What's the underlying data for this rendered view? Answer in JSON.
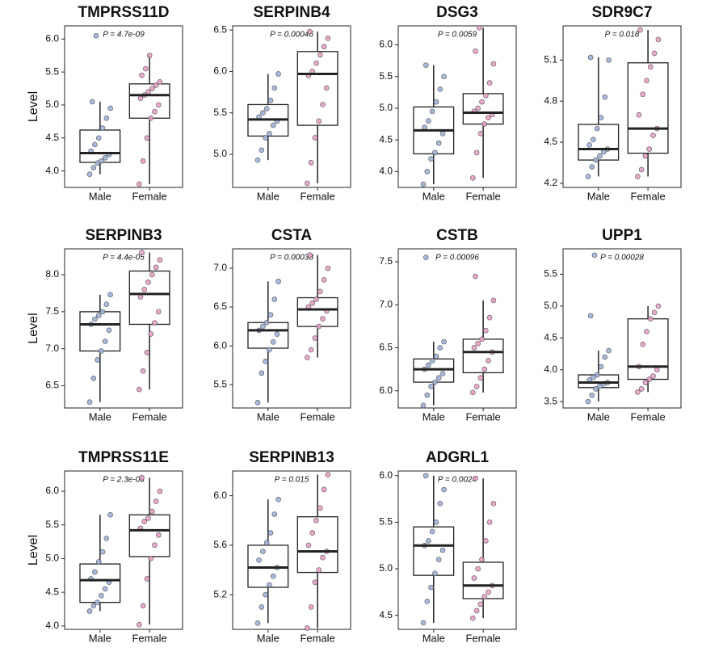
{
  "chart_data": [
    {
      "type": "box",
      "title": "TMPRSS11D",
      "annotation": "P = 4.7e-09",
      "ylabel": "Level",
      "categories": [
        "Male",
        "Female"
      ],
      "colors": [
        "#9fb1d8",
        "#e7a0c6"
      ],
      "ylim": [
        3.75,
        6.2
      ],
      "yticks": [
        {
          "value": 4,
          "label": "4.0"
        },
        4.5,
        {
          "value": 5,
          "label": "5.0"
        },
        5.5,
        {
          "value": 6,
          "label": "6.0"
        }
      ],
      "boxes": [
        {
          "min": 3.95,
          "q1": 4.13,
          "median": 4.27,
          "q3": 4.62,
          "max": 5.05
        },
        {
          "min": 3.8,
          "q1": 4.8,
          "median": 5.15,
          "q3": 5.32,
          "max": 5.75
        }
      ],
      "points": [
        [
          3.95,
          4.05,
          4.12,
          4.15,
          4.2,
          4.25,
          4.3,
          4.4,
          4.5,
          4.65,
          4.8,
          4.95,
          5.05,
          6.05
        ],
        [
          3.8,
          4.15,
          4.5,
          4.8,
          4.9,
          5.0,
          5.1,
          5.15,
          5.2,
          5.25,
          5.3,
          5.35,
          5.45,
          5.55,
          5.75
        ]
      ]
    },
    {
      "type": "box",
      "title": "SERPINB4",
      "annotation": "P = 0.00046",
      "categories": [
        "Male",
        "Female"
      ],
      "colors": [
        "#9fb1d8",
        "#e7a0c6"
      ],
      "ylim": [
        4.6,
        6.55
      ],
      "yticks": [
        {
          "value": 5,
          "label": "5.0"
        },
        5.5,
        {
          "value": 6,
          "label": "6.0"
        },
        6.5
      ],
      "boxes": [
        {
          "min": 4.93,
          "q1": 5.22,
          "median": 5.42,
          "q3": 5.6,
          "max": 5.97
        },
        {
          "min": 4.65,
          "q1": 5.35,
          "median": 5.97,
          "q3": 6.24,
          "max": 6.48
        }
      ],
      "points": [
        [
          4.93,
          5.05,
          5.2,
          5.25,
          5.35,
          5.4,
          5.45,
          5.5,
          5.55,
          5.65,
          5.8,
          5.97
        ],
        [
          4.65,
          4.9,
          5.2,
          5.4,
          5.6,
          5.8,
          5.95,
          6.0,
          6.1,
          6.2,
          6.3,
          6.4,
          6.48
        ]
      ]
    },
    {
      "type": "box",
      "title": "DSG3",
      "annotation": "P = 0.0059",
      "categories": [
        "Male",
        "Female"
      ],
      "colors": [
        "#9fb1d8",
        "#e7a0c6"
      ],
      "ylim": [
        3.75,
        6.3
      ],
      "yticks": [
        {
          "value": 4,
          "label": "4.0"
        },
        4.5,
        {
          "value": 5,
          "label": "5.0"
        },
        5.5,
        {
          "value": 6,
          "label": "6.0"
        }
      ],
      "boxes": [
        {
          "min": 3.8,
          "q1": 4.28,
          "median": 4.65,
          "q3": 5.02,
          "max": 5.68
        },
        {
          "min": 3.9,
          "q1": 4.75,
          "median": 4.93,
          "q3": 5.23,
          "max": 6.27
        }
      ],
      "points": [
        [
          3.8,
          4.0,
          4.2,
          4.3,
          4.45,
          4.6,
          4.7,
          4.8,
          4.95,
          5.1,
          5.3,
          5.5,
          5.68
        ],
        [
          3.9,
          4.3,
          4.6,
          4.75,
          4.85,
          4.9,
          4.95,
          5.0,
          5.1,
          5.2,
          5.4,
          5.7,
          5.9,
          6.27
        ]
      ]
    },
    {
      "type": "box",
      "title": "SDR9C7",
      "annotation": "P = 0.018",
      "categories": [
        "Male",
        "Female"
      ],
      "colors": [
        "#9fb1d8",
        "#e7a0c6"
      ],
      "ylim": [
        4.17,
        5.35
      ],
      "yticks": [
        4.2,
        4.5,
        4.8,
        5.1
      ],
      "boxes": [
        {
          "min": 4.25,
          "q1": 4.37,
          "median": 4.45,
          "q3": 4.63,
          "max": 5.12
        },
        {
          "min": 4.25,
          "q1": 4.42,
          "median": 4.6,
          "q3": 5.08,
          "max": 5.32
        }
      ],
      "points": [
        [
          4.25,
          4.32,
          4.37,
          4.4,
          4.43,
          4.45,
          4.48,
          4.52,
          4.6,
          4.68,
          4.83,
          5.1,
          5.12
        ],
        [
          4.25,
          4.3,
          4.4,
          4.45,
          4.55,
          4.6,
          4.7,
          4.85,
          4.95,
          5.05,
          5.15,
          5.25,
          5.32
        ]
      ]
    },
    {
      "type": "box",
      "title": "SERPINB3",
      "annotation": "P = 4.4e-05",
      "ylabel": "Level",
      "categories": [
        "Male",
        "Female"
      ],
      "colors": [
        "#9fb1d8",
        "#e7a0c6"
      ],
      "ylim": [
        6.2,
        8.35
      ],
      "yticks": [
        6.5,
        {
          "value": 7,
          "label": "7.0"
        },
        7.5,
        {
          "value": 8,
          "label": "8.0"
        }
      ],
      "boxes": [
        {
          "min": 6.28,
          "q1": 6.97,
          "median": 7.33,
          "q3": 7.5,
          "max": 7.73
        },
        {
          "min": 6.45,
          "q1": 7.33,
          "median": 7.74,
          "q3": 8.05,
          "max": 8.3
        }
      ],
      "points": [
        [
          6.28,
          6.6,
          6.85,
          6.97,
          7.1,
          7.25,
          7.33,
          7.4,
          7.45,
          7.5,
          7.6,
          7.73
        ],
        [
          6.45,
          6.7,
          6.95,
          7.2,
          7.35,
          7.5,
          7.7,
          7.8,
          7.9,
          8.0,
          8.1,
          8.2,
          8.3
        ]
      ]
    },
    {
      "type": "box",
      "title": "CSTA",
      "annotation": "P = 0.00038",
      "categories": [
        "Male",
        "Female"
      ],
      "colors": [
        "#9fb1d8",
        "#e7a0c6"
      ],
      "ylim": [
        5.2,
        7.25
      ],
      "yticks": [
        5.5,
        {
          "value": 6,
          "label": "6.0"
        },
        6.5,
        {
          "value": 7,
          "label": "7.0"
        }
      ],
      "boxes": [
        {
          "min": 5.27,
          "q1": 5.97,
          "median": 6.2,
          "q3": 6.3,
          "max": 6.83
        },
        {
          "min": 5.85,
          "q1": 6.25,
          "median": 6.47,
          "q3": 6.62,
          "max": 7.17
        }
      ],
      "points": [
        [
          5.27,
          5.65,
          5.8,
          5.95,
          6.05,
          6.15,
          6.2,
          6.25,
          6.3,
          6.4,
          6.6,
          6.83
        ],
        [
          5.85,
          5.95,
          6.1,
          6.25,
          6.35,
          6.45,
          6.5,
          6.55,
          6.6,
          6.7,
          6.85,
          7.0,
          7.17
        ]
      ]
    },
    {
      "type": "box",
      "title": "CSTB",
      "annotation": "P = 0.00096",
      "categories": [
        "Male",
        "Female"
      ],
      "colors": [
        "#9fb1d8",
        "#e7a0c6"
      ],
      "ylim": [
        5.8,
        7.65
      ],
      "yticks": [
        {
          "value": 6,
          "label": "6.0"
        },
        6.5,
        {
          "value": 7,
          "label": "7.0"
        },
        7.5
      ],
      "boxes": [
        {
          "min": 5.83,
          "q1": 6.1,
          "median": 6.25,
          "q3": 6.37,
          "max": 6.57
        },
        {
          "min": 5.98,
          "q1": 6.21,
          "median": 6.45,
          "q3": 6.6,
          "max": 7.05
        }
      ],
      "points": [
        [
          5.83,
          5.95,
          6.05,
          6.1,
          6.15,
          6.2,
          6.25,
          6.3,
          6.35,
          6.4,
          6.5,
          6.57,
          7.55
        ],
        [
          5.98,
          6.05,
          6.15,
          6.25,
          6.35,
          6.45,
          6.5,
          6.55,
          6.6,
          6.7,
          6.85,
          7.05,
          7.33
        ]
      ]
    },
    {
      "type": "box",
      "title": "UPP1",
      "annotation": "P = 0.00028",
      "categories": [
        "Male",
        "Female"
      ],
      "colors": [
        "#9fb1d8",
        "#e7a0c6"
      ],
      "ylim": [
        3.4,
        5.9
      ],
      "yticks": [
        3.5,
        {
          "value": 4,
          "label": "4.0"
        },
        4.5,
        {
          "value": 5,
          "label": "5.0"
        },
        5.5
      ],
      "boxes": [
        {
          "min": 3.5,
          "q1": 3.72,
          "median": 3.8,
          "q3": 3.92,
          "max": 4.3
        },
        {
          "min": 3.65,
          "q1": 3.85,
          "median": 4.05,
          "q3": 4.8,
          "max": 5.0
        }
      ],
      "points": [
        [
          3.5,
          3.6,
          3.7,
          3.74,
          3.78,
          3.8,
          3.84,
          3.88,
          3.92,
          4.05,
          4.2,
          4.3,
          4.85,
          5.8
        ],
        [
          3.65,
          3.7,
          3.8,
          3.85,
          3.9,
          4.0,
          4.05,
          4.4,
          4.6,
          4.8,
          4.9,
          5.0
        ]
      ]
    },
    {
      "type": "box",
      "title": "TMPRSS11E",
      "annotation": "P = 2.3e-08",
      "ylabel": "Level",
      "categories": [
        "Male",
        "Female"
      ],
      "colors": [
        "#9fb1d8",
        "#e7a0c6"
      ],
      "ylim": [
        3.95,
        6.3
      ],
      "yticks": [
        {
          "value": 4,
          "label": "4.0"
        },
        4.5,
        {
          "value": 5,
          "label": "5.0"
        },
        5.5,
        {
          "value": 6,
          "label": "6.0"
        }
      ],
      "boxes": [
        {
          "min": 4.22,
          "q1": 4.35,
          "median": 4.68,
          "q3": 4.92,
          "max": 5.65
        },
        {
          "min": 4.02,
          "q1": 5.03,
          "median": 5.42,
          "q3": 5.65,
          "max": 6.2
        }
      ],
      "points": [
        [
          4.22,
          4.3,
          4.35,
          4.45,
          4.55,
          4.65,
          4.7,
          4.8,
          4.95,
          5.1,
          5.3,
          5.65
        ],
        [
          4.02,
          4.3,
          4.7,
          5.0,
          5.2,
          5.35,
          5.45,
          5.55,
          5.6,
          5.7,
          5.85,
          6.0,
          6.2
        ]
      ]
    },
    {
      "type": "box",
      "title": "SERPINB13",
      "annotation": "P = 0.015",
      "categories": [
        "Male",
        "Female"
      ],
      "colors": [
        "#9fb1d8",
        "#e7a0c6"
      ],
      "ylim": [
        4.92,
        6.2
      ],
      "yticks": [
        5.2,
        5.6,
        {
          "value": 6,
          "label": "6.0"
        }
      ],
      "boxes": [
        {
          "min": 4.97,
          "q1": 5.26,
          "median": 5.42,
          "q3": 5.6,
          "max": 5.97
        },
        {
          "min": 4.93,
          "q1": 5.38,
          "median": 5.55,
          "q3": 5.83,
          "max": 6.17
        }
      ],
      "points": [
        [
          4.97,
          5.1,
          5.2,
          5.28,
          5.35,
          5.42,
          5.48,
          5.55,
          5.62,
          5.7,
          5.85,
          5.97
        ],
        [
          4.93,
          5.1,
          5.3,
          5.4,
          5.5,
          5.55,
          5.6,
          5.7,
          5.8,
          5.9,
          6.05,
          6.17
        ]
      ]
    },
    {
      "type": "box",
      "title": "ADGRL1",
      "annotation": "P = 0.0024",
      "categories": [
        "Male",
        "Female"
      ],
      "colors": [
        "#9fb1d8",
        "#e7a0c6"
      ],
      "ylim": [
        4.35,
        6.05
      ],
      "yticks": [
        4.5,
        {
          "value": 5,
          "label": "5.0"
        },
        5.5,
        {
          "value": 6,
          "label": "6.0"
        }
      ],
      "boxes": [
        {
          "min": 4.42,
          "q1": 4.93,
          "median": 5.25,
          "q3": 5.45,
          "max": 6.0
        },
        {
          "min": 4.47,
          "q1": 4.68,
          "median": 4.82,
          "q3": 5.07,
          "max": 5.97
        }
      ],
      "points": [
        [
          4.42,
          4.65,
          4.8,
          4.95,
          5.1,
          5.2,
          5.25,
          5.3,
          5.4,
          5.5,
          5.7,
          5.85,
          6.0
        ],
        [
          4.47,
          4.55,
          4.62,
          4.7,
          4.75,
          4.82,
          4.9,
          5.0,
          5.1,
          5.3,
          5.5,
          5.7,
          5.97
        ]
      ]
    }
  ]
}
